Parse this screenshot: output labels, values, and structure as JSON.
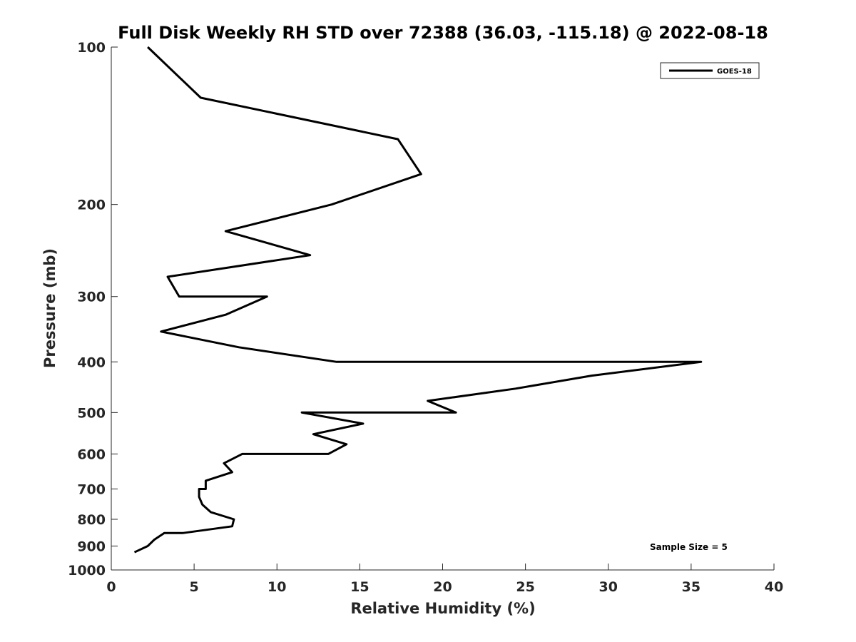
{
  "chart_data": {
    "type": "line",
    "title": "Full Disk Weekly RH STD over 72388 (36.03, -115.18) @ 2022-08-18",
    "xlabel": "Relative Humidity (%)",
    "ylabel": "Pressure (mb)",
    "xlim": [
      0,
      40
    ],
    "ylim": [
      100,
      1000
    ],
    "yscale": "log",
    "yreversed": true,
    "xticks": [
      0,
      5,
      10,
      15,
      20,
      25,
      30,
      35,
      40
    ],
    "yticks": [
      100,
      200,
      300,
      400,
      500,
      600,
      700,
      800,
      900,
      1000
    ],
    "grid": false,
    "legend_position": "top-right",
    "annotation": "Sample Size = 5",
    "series": [
      {
        "name": "GOES-18",
        "color": "#000000",
        "points": [
          [
            2.2,
            100
          ],
          [
            5.4,
            125
          ],
          [
            17.3,
            150
          ],
          [
            18.7,
            175
          ],
          [
            13.3,
            200
          ],
          [
            6.9,
            225
          ],
          [
            12.0,
            250
          ],
          [
            3.4,
            275
          ],
          [
            4.1,
            300
          ],
          [
            9.4,
            300
          ],
          [
            6.9,
            325
          ],
          [
            3.0,
            350
          ],
          [
            7.7,
            375
          ],
          [
            13.6,
            400
          ],
          [
            35.6,
            400
          ],
          [
            29.0,
            425
          ],
          [
            24.4,
            450
          ],
          [
            19.1,
            475
          ],
          [
            20.8,
            500
          ],
          [
            11.5,
            500
          ],
          [
            15.2,
            525
          ],
          [
            12.2,
            550
          ],
          [
            14.2,
            575
          ],
          [
            13.1,
            600
          ],
          [
            7.9,
            600
          ],
          [
            6.8,
            625
          ],
          [
            7.3,
            650
          ],
          [
            5.7,
            675
          ],
          [
            5.7,
            700
          ],
          [
            5.3,
            700
          ],
          [
            5.3,
            725
          ],
          [
            5.5,
            750
          ],
          [
            6.0,
            775
          ],
          [
            7.4,
            800
          ],
          [
            7.3,
            825
          ],
          [
            4.3,
            850
          ],
          [
            3.2,
            850
          ],
          [
            2.6,
            875
          ],
          [
            2.2,
            900
          ],
          [
            1.4,
            925
          ]
        ]
      }
    ]
  }
}
